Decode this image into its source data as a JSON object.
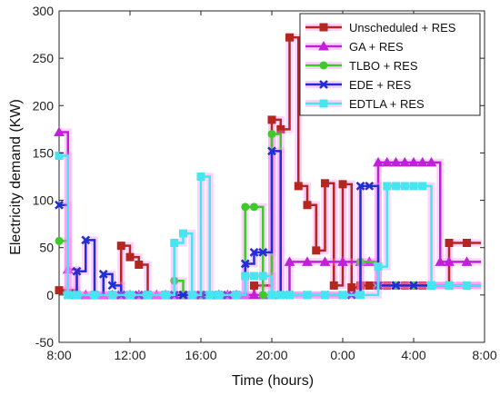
{
  "chart_data": {
    "type": "line",
    "xlabel": "Time (hours)",
    "ylabel": "Electricity demand (KW)",
    "x_ticks": [
      "8:00",
      "12:00",
      "16:00",
      "20:00",
      "0:00",
      "4:00",
      "8:00"
    ],
    "y_ticks": [
      "-50",
      "0",
      "50",
      "100",
      "150",
      "200",
      "250",
      "300"
    ],
    "xlim": [
      0,
      24
    ],
    "ylim": [
      -50,
      300
    ],
    "grid": false,
    "legend_position": "top-right",
    "series": [
      {
        "name": "Unscheduled + RES",
        "color": "#b5271e",
        "glow": "#ff80ff",
        "marker": "square",
        "x": [
          0,
          1,
          2,
          3,
          3.5,
          4,
          4.5,
          5,
          6,
          7,
          8,
          9,
          10,
          11,
          12,
          12.5,
          13,
          13.5,
          14,
          14.5,
          15,
          15.5,
          16,
          16.5,
          17,
          17.5,
          18,
          18.5,
          19,
          19.5,
          20,
          20.5,
          21,
          22,
          23
        ],
        "y": [
          5,
          0,
          0,
          0,
          52,
          40,
          32,
          0,
          0,
          0,
          0,
          0,
          0,
          10,
          185,
          175,
          272,
          115,
          95,
          47,
          118,
          10,
          117,
          8,
          10,
          10,
          10,
          10,
          10,
          10,
          10,
          10,
          10,
          55,
          55
        ]
      },
      {
        "name": "GA + RES",
        "color": "#c020d8",
        "glow": "#ff80ff",
        "marker": "triangle",
        "x": [
          0,
          0.5,
          1,
          1.5,
          2,
          2.5,
          3,
          3.5,
          4,
          4.5,
          5,
          5.5,
          6,
          6.5,
          7,
          7.5,
          8,
          8.5,
          9,
          9.5,
          10,
          10.5,
          11,
          11.5,
          12,
          13,
          14,
          15,
          16,
          17,
          17.5,
          18,
          18.5,
          19,
          19.5,
          20,
          20.5,
          21,
          21.5,
          22,
          23
        ],
        "y": [
          172,
          27,
          0,
          0,
          0,
          0,
          0,
          0,
          0,
          0,
          0,
          0,
          0,
          0,
          0,
          0,
          0,
          0,
          0,
          0,
          0,
          0,
          0,
          0,
          0,
          35,
          35,
          35,
          35,
          35,
          35,
          140,
          140,
          140,
          140,
          140,
          140,
          140,
          35,
          35,
          35
        ]
      },
      {
        "name": "TLBO + RES",
        "color": "#3ccc28",
        "glow": "#ff80ff",
        "marker": "circle",
        "x": [
          0,
          0.5,
          1,
          2,
          3,
          4,
          5,
          6,
          6.5,
          7,
          8,
          9,
          10,
          10.5,
          11,
          11.5,
          12,
          12.5,
          13,
          14,
          15,
          16,
          17,
          18,
          19,
          20,
          21,
          22,
          23
        ],
        "y": [
          57,
          0,
          0,
          0,
          0,
          0,
          0,
          0,
          15,
          0,
          0,
          0,
          0,
          93,
          93,
          0,
          170,
          0,
          0,
          0,
          0,
          0,
          35,
          10,
          10,
          10,
          10,
          10,
          10
        ]
      },
      {
        "name": "EDE + RES",
        "color": "#1f2fd6",
        "glow": "#ff80ff",
        "marker": "x",
        "x": [
          0,
          0.5,
          1,
          1.5,
          2,
          2.5,
          3,
          3.5,
          4,
          4.5,
          5,
          6,
          6.5,
          7,
          7.5,
          8,
          8.5,
          9,
          9.5,
          10,
          10.5,
          11,
          11.5,
          12,
          12.5,
          13,
          14,
          15,
          16,
          16.5,
          17,
          17.5,
          18,
          19,
          20,
          21,
          22,
          23
        ],
        "y": [
          95,
          0,
          25,
          58,
          0,
          22,
          10,
          0,
          0,
          0,
          0,
          0,
          0,
          0,
          0,
          0,
          0,
          0,
          0,
          0,
          33,
          45,
          45,
          152,
          0,
          0,
          0,
          0,
          0,
          0,
          115,
          115,
          10,
          10,
          10,
          10,
          10,
          10
        ]
      },
      {
        "name": "EDTLA + RES",
        "color": "#45e6f0",
        "glow": "#ff80ff",
        "marker": "square",
        "x": [
          0,
          0.5,
          1,
          2,
          3,
          4,
          5,
          6,
          6.5,
          7,
          7.5,
          8,
          8.5,
          9,
          10,
          10.5,
          11,
          11.5,
          12,
          12.5,
          13,
          14,
          15,
          16,
          17,
          18,
          18.5,
          19,
          19.5,
          20,
          20.5,
          21,
          22,
          23
        ],
        "y": [
          147,
          0,
          0,
          0,
          0,
          0,
          0,
          0,
          55,
          65,
          0,
          125,
          0,
          0,
          0,
          20,
          20,
          20,
          0,
          0,
          0,
          0,
          0,
          0,
          0,
          30,
          115,
          115,
          115,
          115,
          115,
          10,
          10,
          10
        ]
      }
    ]
  }
}
